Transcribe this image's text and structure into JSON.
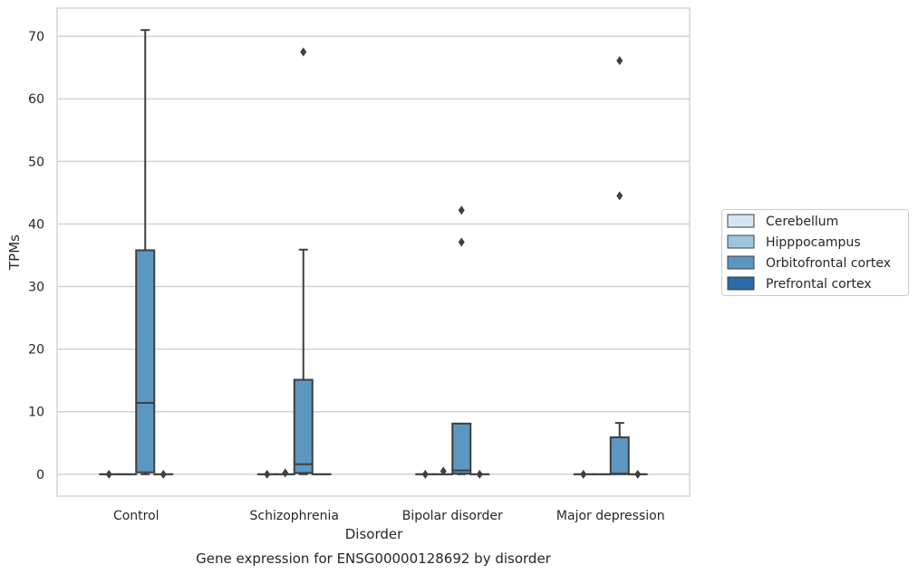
{
  "caption": "Gene expression for ENSG00000128692 by disorder",
  "chart_data": {
    "type": "box",
    "title": "",
    "xlabel": "Disorder",
    "ylabel": "TPMs",
    "ylim": [
      -3.5,
      74.5
    ],
    "yticks": [
      0,
      10,
      20,
      30,
      40,
      50,
      60,
      70
    ],
    "grid": "horizontal",
    "legend_placement": "right",
    "categories": [
      "Control",
      "Schizophrenia",
      "Bipolar disorder",
      "Major depression"
    ],
    "series": [
      {
        "name": "Cerebellum",
        "color": "#d6e5f2",
        "boxes": [
          {
            "min": 0,
            "q1": 0,
            "median": 0,
            "q3": 0,
            "max": 0,
            "outliers": [
              0
            ]
          },
          {
            "min": 0,
            "q1": 0,
            "median": 0,
            "q3": 0,
            "max": 0,
            "outliers": [
              0
            ]
          },
          {
            "min": 0,
            "q1": 0,
            "median": 0,
            "q3": 0,
            "max": 0,
            "outliers": [
              0
            ]
          },
          {
            "min": 0,
            "q1": 0,
            "median": 0,
            "q3": 0,
            "max": 0,
            "outliers": [
              0
            ]
          }
        ]
      },
      {
        "name": "Hipppocampus",
        "color": "#9fc5de",
        "boxes": [
          {
            "min": 0,
            "q1": 0,
            "median": 0,
            "q3": 0,
            "max": 0,
            "outliers": []
          },
          {
            "min": 0,
            "q1": 0,
            "median": 0,
            "q3": 0,
            "max": 0,
            "outliers": [
              0.2
            ]
          },
          {
            "min": 0,
            "q1": 0,
            "median": 0,
            "q3": 0,
            "max": 0,
            "outliers": [
              0.5
            ]
          },
          {
            "min": 0,
            "q1": 0,
            "median": 0,
            "q3": 0,
            "max": 0,
            "outliers": []
          }
        ]
      },
      {
        "name": "Orbitofrontal cortex",
        "color": "#5b97c1",
        "boxes": [
          {
            "min": 0,
            "q1": 0.3,
            "median": 11.4,
            "q3": 35.8,
            "max": 71.0,
            "outliers": []
          },
          {
            "min": 0,
            "q1": 0.2,
            "median": 1.6,
            "q3": 15.1,
            "max": 35.9,
            "outliers": [
              67.5
            ]
          },
          {
            "min": 0,
            "q1": 0.1,
            "median": 0.6,
            "q3": 8.1,
            "max": 8.1,
            "outliers": [
              37.1,
              42.2
            ]
          },
          {
            "min": 0,
            "q1": 0,
            "median": 0.1,
            "q3": 5.9,
            "max": 8.2,
            "outliers": [
              44.5,
              66.1
            ]
          }
        ]
      },
      {
        "name": "Prefrontal cortex",
        "color": "#2b6aa6",
        "boxes": [
          {
            "min": 0,
            "q1": 0,
            "median": 0,
            "q3": 0,
            "max": 0,
            "outliers": [
              0
            ]
          },
          {
            "min": 0,
            "q1": 0,
            "median": 0,
            "q3": 0,
            "max": 0,
            "outliers": []
          },
          {
            "min": 0,
            "q1": 0,
            "median": 0,
            "q3": 0,
            "max": 0,
            "outliers": [
              0
            ]
          },
          {
            "min": 0,
            "q1": 0,
            "median": 0,
            "q3": 0,
            "max": 0,
            "outliers": [
              0
            ]
          }
        ]
      }
    ]
  }
}
